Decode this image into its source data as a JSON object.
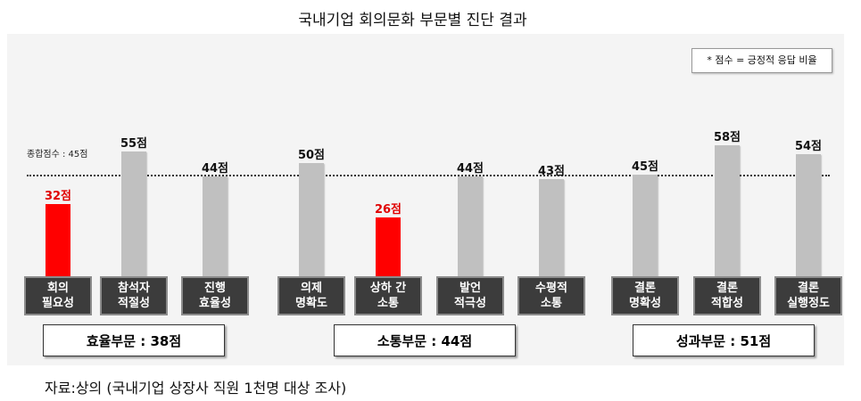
{
  "chart_data": {
    "type": "bar",
    "title": "국내기업 회의문화 부문별 진단 결과",
    "legend_note": "* 점수 = 긍정적  응답 비율",
    "average": {
      "label": "종합점수 : 45점",
      "value": 45
    },
    "ylim": [
      0,
      60
    ],
    "categories": [
      "회의\n필요성",
      "참석자\n적절성",
      "진행\n효율성",
      "의제\n명확도",
      "상하 간\n소통",
      "발언\n적극성",
      "수평적\n소통",
      "결론\n명확성",
      "결론\n적합성",
      "결론\n실행정도"
    ],
    "values": [
      32,
      55,
      44,
      50,
      26,
      44,
      43,
      45,
      58,
      54
    ],
    "value_labels": [
      "32점",
      "55점",
      "44점",
      "50점",
      "26점",
      "44점",
      "43점",
      "45점",
      "58점",
      "54점"
    ],
    "highlight": [
      true,
      false,
      false,
      false,
      true,
      false,
      false,
      false,
      false,
      false
    ],
    "colors": {
      "bar": "#c0c0c0",
      "highlight": "#ff0000"
    },
    "sections": [
      {
        "label": "효율부문 : 38점"
      },
      {
        "label": "소통부문 : 44점"
      },
      {
        "label": "성과부문 : 51점"
      }
    ],
    "source": "자료:상의 (국내기업 상장사 직원 1천명 대상 조사)"
  }
}
